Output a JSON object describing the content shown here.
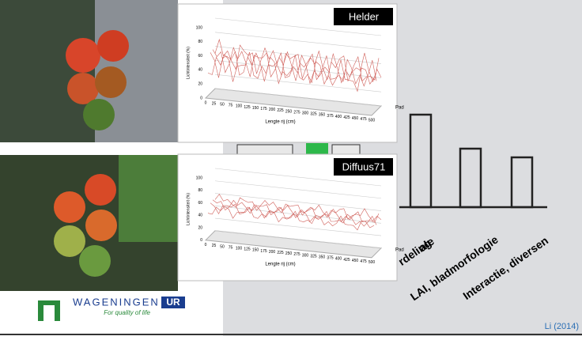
{
  "panels": [
    {
      "label": "Helder",
      "y_axis_label": "Lichtintensiteit (%)",
      "x_axis_label": "Lengte rij (cm)",
      "depth_axis_label": "Pad",
      "yticks": [
        0,
        20,
        40,
        60,
        80,
        100
      ],
      "xticks": [
        0,
        25,
        50,
        75,
        100,
        125,
        150,
        175,
        200,
        225,
        250,
        275,
        300,
        325,
        350,
        375,
        400,
        425,
        450,
        475,
        500
      ]
    },
    {
      "label": "Diffuus71",
      "y_axis_label": "Lichtintensiteit (%)",
      "x_axis_label": "Lengte rij (cm)",
      "depth_axis_label": "Pad",
      "yticks": [
        0,
        20,
        40,
        60,
        80,
        100
      ],
      "xticks": [
        0,
        25,
        50,
        75,
        100,
        125,
        150,
        175,
        200,
        225,
        250,
        275,
        300,
        325,
        350,
        375,
        400,
        425,
        450,
        475,
        500
      ]
    }
  ],
  "background_chart": {
    "labels": [
      "ale",
      "rdeling",
      "LAI, bladmorfologie",
      "Interactie, diversen"
    ]
  },
  "logo": {
    "name": "WAGENINGEN",
    "suffix": "UR",
    "tagline": "For quality of life"
  },
  "citation": "Li (2014)"
}
